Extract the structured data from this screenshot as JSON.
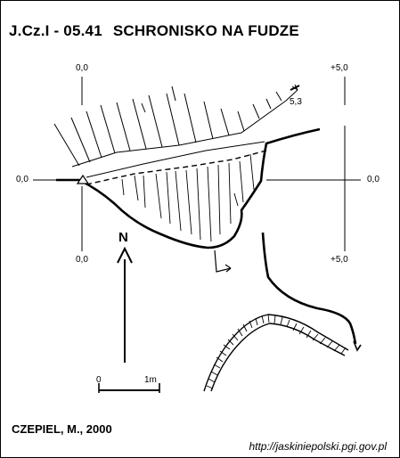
{
  "title": {
    "code": "J.Cz.I - 05.41",
    "name": "SCHRONISKO NA FUDZE"
  },
  "coordinates": {
    "top_left": "0,0",
    "top_right": "+5,0",
    "left_axis": "0,0",
    "right_axis": "0,0",
    "bottom_left": "0,0",
    "bottom_right": "+5,0"
  },
  "slope_label": "5,3",
  "north_label": "N",
  "scale_bar": {
    "start": "0",
    "end": "1m"
  },
  "author": "CZEPIEL, M., 2000",
  "url": "http://jaskiniepolski.pgi.gov.pl"
}
